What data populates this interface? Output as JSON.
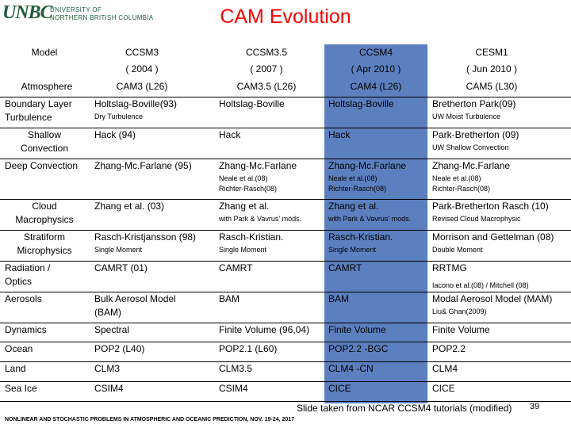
{
  "logo": {
    "mark": "UNBC",
    "line1": "UNIVERSITY OF",
    "line2": "NORTHERN BRITISH COLUMBIA"
  },
  "title": "CAM Evolution",
  "header": {
    "model": "Model",
    "models": [
      {
        "name": "CCSM3",
        "date": "( 2004 )"
      },
      {
        "name": "CCSM3.5",
        "date": "( 2007 )"
      },
      {
        "name": "CCSM4",
        "date": "( Apr 2010 )"
      },
      {
        "name": "CESM1",
        "date": "( Jun 2010 )"
      }
    ]
  },
  "atmosphere": {
    "label": "Atmosphere",
    "values": [
      "CAM3 (L26)",
      "CAM3.5 (L26)",
      "CAM4 (L26)",
      "CAM5 (L30)"
    ]
  },
  "rows": [
    {
      "label": [
        "Boundary Layer",
        "Turbulence"
      ],
      "cells": [
        {
          "main": "Holtslag-Boville(93)",
          "sub": [
            "Dry Turbulence"
          ]
        },
        {
          "main": "Holtslag-Boville",
          "sub": []
        },
        {
          "main": "Holtslag-Boville",
          "sub": []
        },
        {
          "main": "Bretherton Park(09)",
          "sub": [
            "UW Moist Turbulence"
          ]
        }
      ]
    },
    {
      "label": [
        "Shallow",
        "Convection"
      ],
      "cells": [
        {
          "main": "Hack (94)",
          "sub": []
        },
        {
          "main": "Hack",
          "sub": []
        },
        {
          "main": "Hack",
          "sub": []
        },
        {
          "main": "Park-Bretherton (09)",
          "sub": [
            "UW Shallow Convection"
          ]
        }
      ]
    },
    {
      "label": [
        "Deep Convection"
      ],
      "cells": [
        {
          "main": "Zhang-Mc.Farlane (95)",
          "sub": []
        },
        {
          "main": "Zhang-Mc.Farlane",
          "sub": [
            "Neale et al.(08)",
            "Richter-Rasch(08)"
          ]
        },
        {
          "main": "Zhang-Mc.Farlane",
          "sub": [
            "Neale et al.(08)",
            "Richter-Rasch(08)"
          ]
        },
        {
          "main": "Zhang-Mc.Farlane",
          "sub": [
            "Neale et al.(08)",
            "Richter-Rasch(08)"
          ]
        }
      ]
    },
    {
      "label": [
        "Cloud",
        "Macrophysics"
      ],
      "cells": [
        {
          "main": "Zhang et al. (03)",
          "sub": []
        },
        {
          "main": "Zhang et al.",
          "sub": [
            "with Park & Vavrus' mods."
          ]
        },
        {
          "main": "Zhang et al.",
          "sub": [
            "with Park & Vavrus' mods."
          ]
        },
        {
          "main": "Park-Bretherton Rasch (10)",
          "sub": [
            "Revised Cloud Macrophysic"
          ]
        }
      ]
    },
    {
      "label": [
        "Stratiform",
        "Microphysics"
      ],
      "cells": [
        {
          "main": "Rasch-Kristjansson (98)",
          "sub": [
            "Single Moment"
          ]
        },
        {
          "main": "Rasch-Kristian.",
          "sub": [
            "Single Moment"
          ]
        },
        {
          "main": "Rasch-Kristian.",
          "sub": [
            "Single Moment"
          ]
        },
        {
          "main": "Morrison and Gettelman (08)",
          "sub": [
            "Double Moment"
          ]
        }
      ]
    },
    {
      "label": [
        "Radiation /",
        "Optics"
      ],
      "cells": [
        {
          "main": "CAMRT (01)",
          "sub": []
        },
        {
          "main": "CAMRT",
          "sub": []
        },
        {
          "main": "CAMRT",
          "sub": []
        },
        {
          "main": "RRTMG",
          "sub": [
            "Iacono et al.(08) / Mitchell (08)"
          ]
        }
      ]
    },
    {
      "label": [
        "Aerosols"
      ],
      "cells": [
        {
          "main": "Bulk Aerosol Model",
          "main2": "(BAM)",
          "sub": []
        },
        {
          "main": "BAM",
          "sub": []
        },
        {
          "main": "BAM",
          "sub": []
        },
        {
          "main": "Modal Aerosol Model (MAM)",
          "sub": [
            "Liu& Ghan(2009)"
          ]
        }
      ]
    },
    {
      "label": [
        "Dynamics"
      ],
      "cells": [
        {
          "main": "Spectral",
          "sub": []
        },
        {
          "main": "Finite Volume (96,04)",
          "sub": []
        },
        {
          "main": "Finite Volume",
          "sub": []
        },
        {
          "main": "Finite Volume",
          "sub": []
        }
      ]
    },
    {
      "label": [
        "Ocean"
      ],
      "cells": [
        {
          "main": "POP2 (L40)",
          "sub": []
        },
        {
          "main": "POP2.1 (L60)",
          "sub": []
        },
        {
          "main": "POP2.2 -BGC",
          "sub": []
        },
        {
          "main": "POP2.2",
          "sub": []
        }
      ]
    },
    {
      "label": [
        "Land"
      ],
      "cells": [
        {
          "main": "CLM3",
          "sub": []
        },
        {
          "main": "CLM3.5",
          "sub": []
        },
        {
          "main": "CLM4 -CN",
          "sub": []
        },
        {
          "main": "CLM4",
          "sub": []
        }
      ]
    },
    {
      "label": [
        "Sea Ice"
      ],
      "cells": [
        {
          "main": "CSIM4",
          "sub": []
        },
        {
          "main": "CSIM4",
          "sub": []
        },
        {
          "main": "CICE",
          "sub": []
        },
        {
          "main": "CICE",
          "sub": []
        }
      ]
    }
  ],
  "footer": {
    "source": "Slide taken from NCAR CCSM4 tutorials (modified)",
    "page": "39",
    "conference": "NONLINEAR AND STOCHASTIC PROBLEMS IN ATMOSPHERIC AND OCEANIC PREDICTION, NOV. 19-24, 2017"
  },
  "colors": {
    "title": "#ff0000",
    "highlight": "#5b7fbf",
    "logo": "#1f5a3a"
  }
}
